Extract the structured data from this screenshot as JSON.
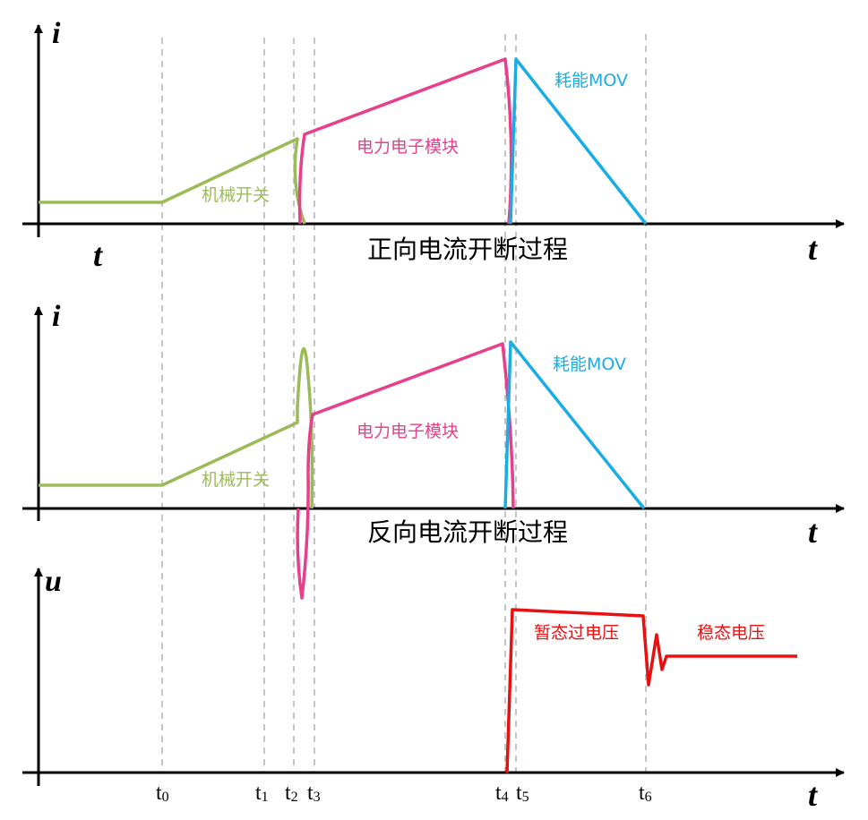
{
  "colors": {
    "mechanical": "#9bbb59",
    "power_electronic": "#e83e8c",
    "mov": "#1aace4",
    "voltage": "#e81010",
    "axis": "#000000",
    "guide": "#a6a6a6"
  },
  "panel1": {
    "y_label": "i",
    "x_label_left": "t",
    "x_label_right": "t",
    "caption": "正向电流开断过程",
    "label_mech": "机械开关",
    "label_pe": "电力电子模块",
    "label_mov": "耗能MOV"
  },
  "panel2": {
    "y_label": "i",
    "x_label_right": "t",
    "caption": "反向电流开断过程",
    "label_mech": "机械开关",
    "label_pe": "电力电子模块",
    "label_mov": "耗能MOV"
  },
  "panel3": {
    "y_label": "u",
    "x_label_right": "t",
    "label_transient": "暂态过电压",
    "label_steady": "稳态电压"
  },
  "time_marks": [
    {
      "name": "t",
      "sub": "0"
    },
    {
      "name": "t",
      "sub": "1"
    },
    {
      "name": "t",
      "sub": "2"
    },
    {
      "name": "t",
      "sub": "3"
    },
    {
      "name": "t",
      "sub": "4"
    },
    {
      "name": "t",
      "sub": "5"
    },
    {
      "name": "t",
      "sub": "6"
    }
  ]
}
